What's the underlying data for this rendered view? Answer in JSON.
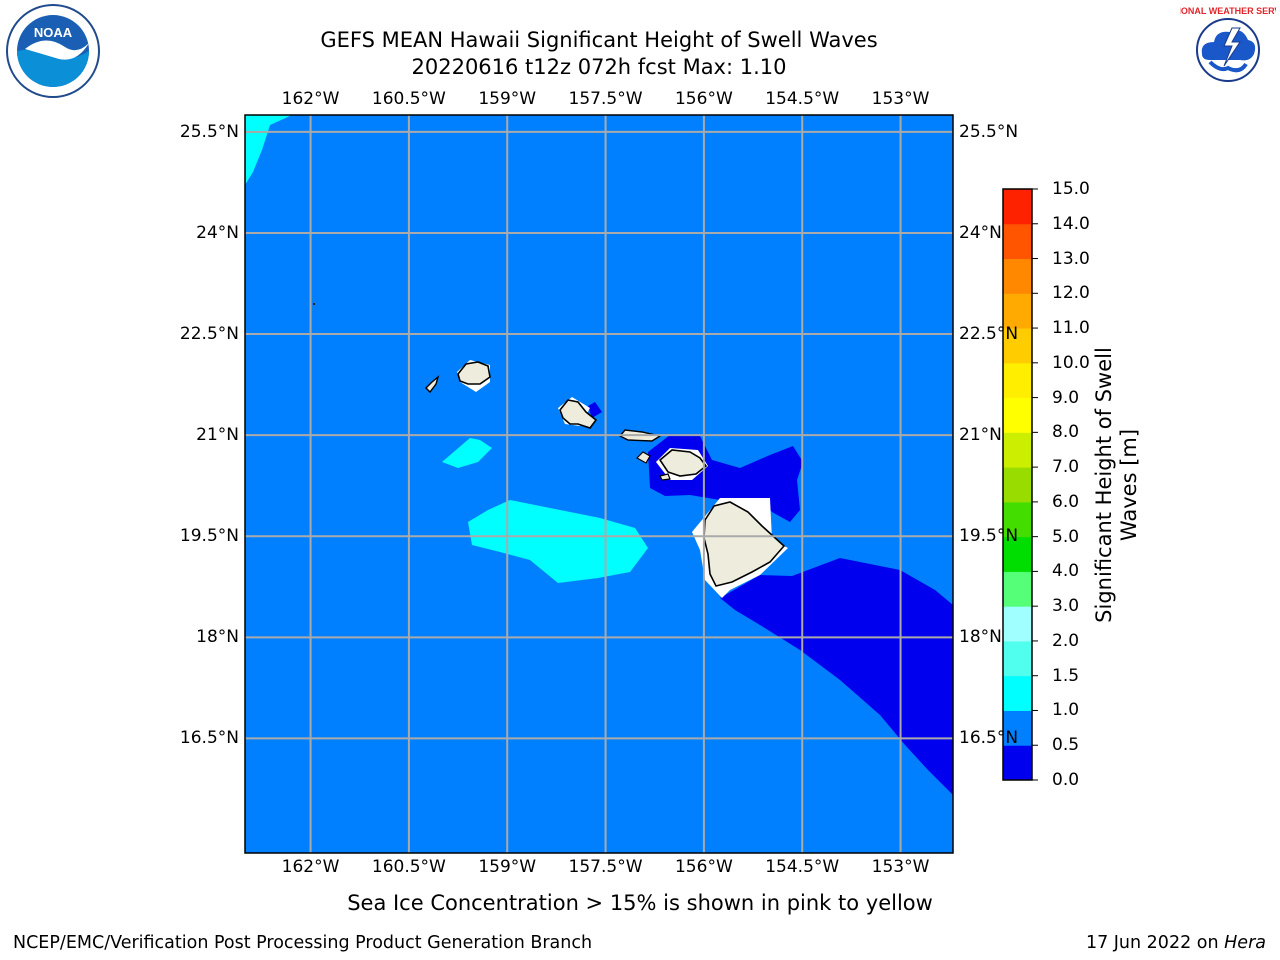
{
  "title": {
    "line1": "GEFS MEAN Hawaii Significant Height of Swell Waves",
    "line2": "20220616 t12z 072h fcst   Max: 1.10"
  },
  "map": {
    "lon_labels": [
      "162°W",
      "160.5°W",
      "159°W",
      "157.5°W",
      "156°W",
      "154.5°W",
      "153°W"
    ],
    "lon_values": [
      -162,
      -160.5,
      -159,
      -157.5,
      -156,
      -154.5,
      -153
    ],
    "lat_labels": [
      "25.5°N",
      "24°N",
      "22.5°N",
      "21°N",
      "19.5°N",
      "18°N",
      "16.5°N"
    ],
    "lat_values": [
      25.5,
      24,
      22.5,
      21,
      19.5,
      18,
      16.5
    ],
    "lon_range": [
      -163,
      -152.2
    ],
    "lat_range": [
      14.8,
      25.75
    ],
    "gridlines": true,
    "ocean_fill_band": "0.5-1.0",
    "land_color": "#eeecdd"
  },
  "colorbar": {
    "label": "Significant Height of Swell Waves [m]",
    "ticks": [
      "15.0",
      "14.0",
      "13.0",
      "12.0",
      "11.0",
      "10.0",
      "9.0",
      "8.0",
      "7.0",
      "6.0",
      "5.0",
      "4.0",
      "3.0",
      "2.0",
      "1.5",
      "1.0",
      "0.5",
      "0.0"
    ],
    "levels": [
      0.0,
      0.5,
      1.0,
      1.5,
      2.0,
      3.0,
      4.0,
      5.0,
      6.0,
      7.0,
      8.0,
      9.0,
      10.0,
      11.0,
      12.0,
      13.0,
      14.0,
      15.0
    ],
    "colors": [
      "#0000ee",
      "#0080ff",
      "#00ffff",
      "#50ffee",
      "#a0ffff",
      "#55ff77",
      "#00dd00",
      "#44dd00",
      "#99dd00",
      "#ccee00",
      "#ffff00",
      "#ffee00",
      "#ffcc00",
      "#ffaa00",
      "#ff8800",
      "#ff5500",
      "#ff2200"
    ]
  },
  "note": "Sea Ice Concentration > 15% is shown in pink to yellow",
  "footer": {
    "left": "NCEP/EMC/Verification Post Processing Product Generation Branch",
    "right_prefix": "17 Jun 2022 on ",
    "right_host": "Hera"
  },
  "logos": {
    "left": "noaa-logo",
    "right": "national-weather-service-logo",
    "left_text": "NOAA",
    "right_text": "NATIONAL WEATHER SERVICE"
  }
}
